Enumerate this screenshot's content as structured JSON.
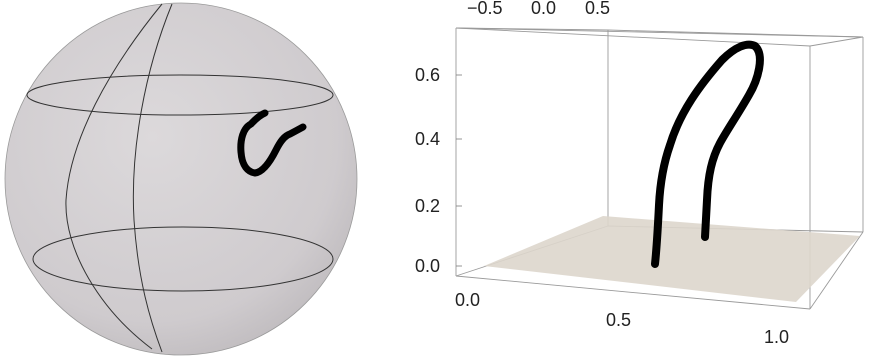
{
  "colors": {
    "sphere_fill": "#d2ced1",
    "sphere_outline": "#888888",
    "grid_line": "#333333",
    "curve": "#000000",
    "plane_fill": "#ddd6cc",
    "box_line": "#9a9a9a",
    "tick_text": "#222222"
  },
  "left_panel": {
    "shape": "sphere",
    "grid": "two latitude circles and two meridians",
    "curve_color": "#000000"
  },
  "right_panel": {
    "vertical_axis_ticks": [
      "0.0",
      "0.2",
      "0.4",
      "0.6"
    ],
    "bottom_axis_ticks": [
      "0.0",
      "0.5",
      "1.0"
    ],
    "top_axis_ticks": [
      "−0.5",
      "0.0",
      "0.5"
    ],
    "curve_color": "#000000",
    "plane_color": "#ddd6cc"
  }
}
